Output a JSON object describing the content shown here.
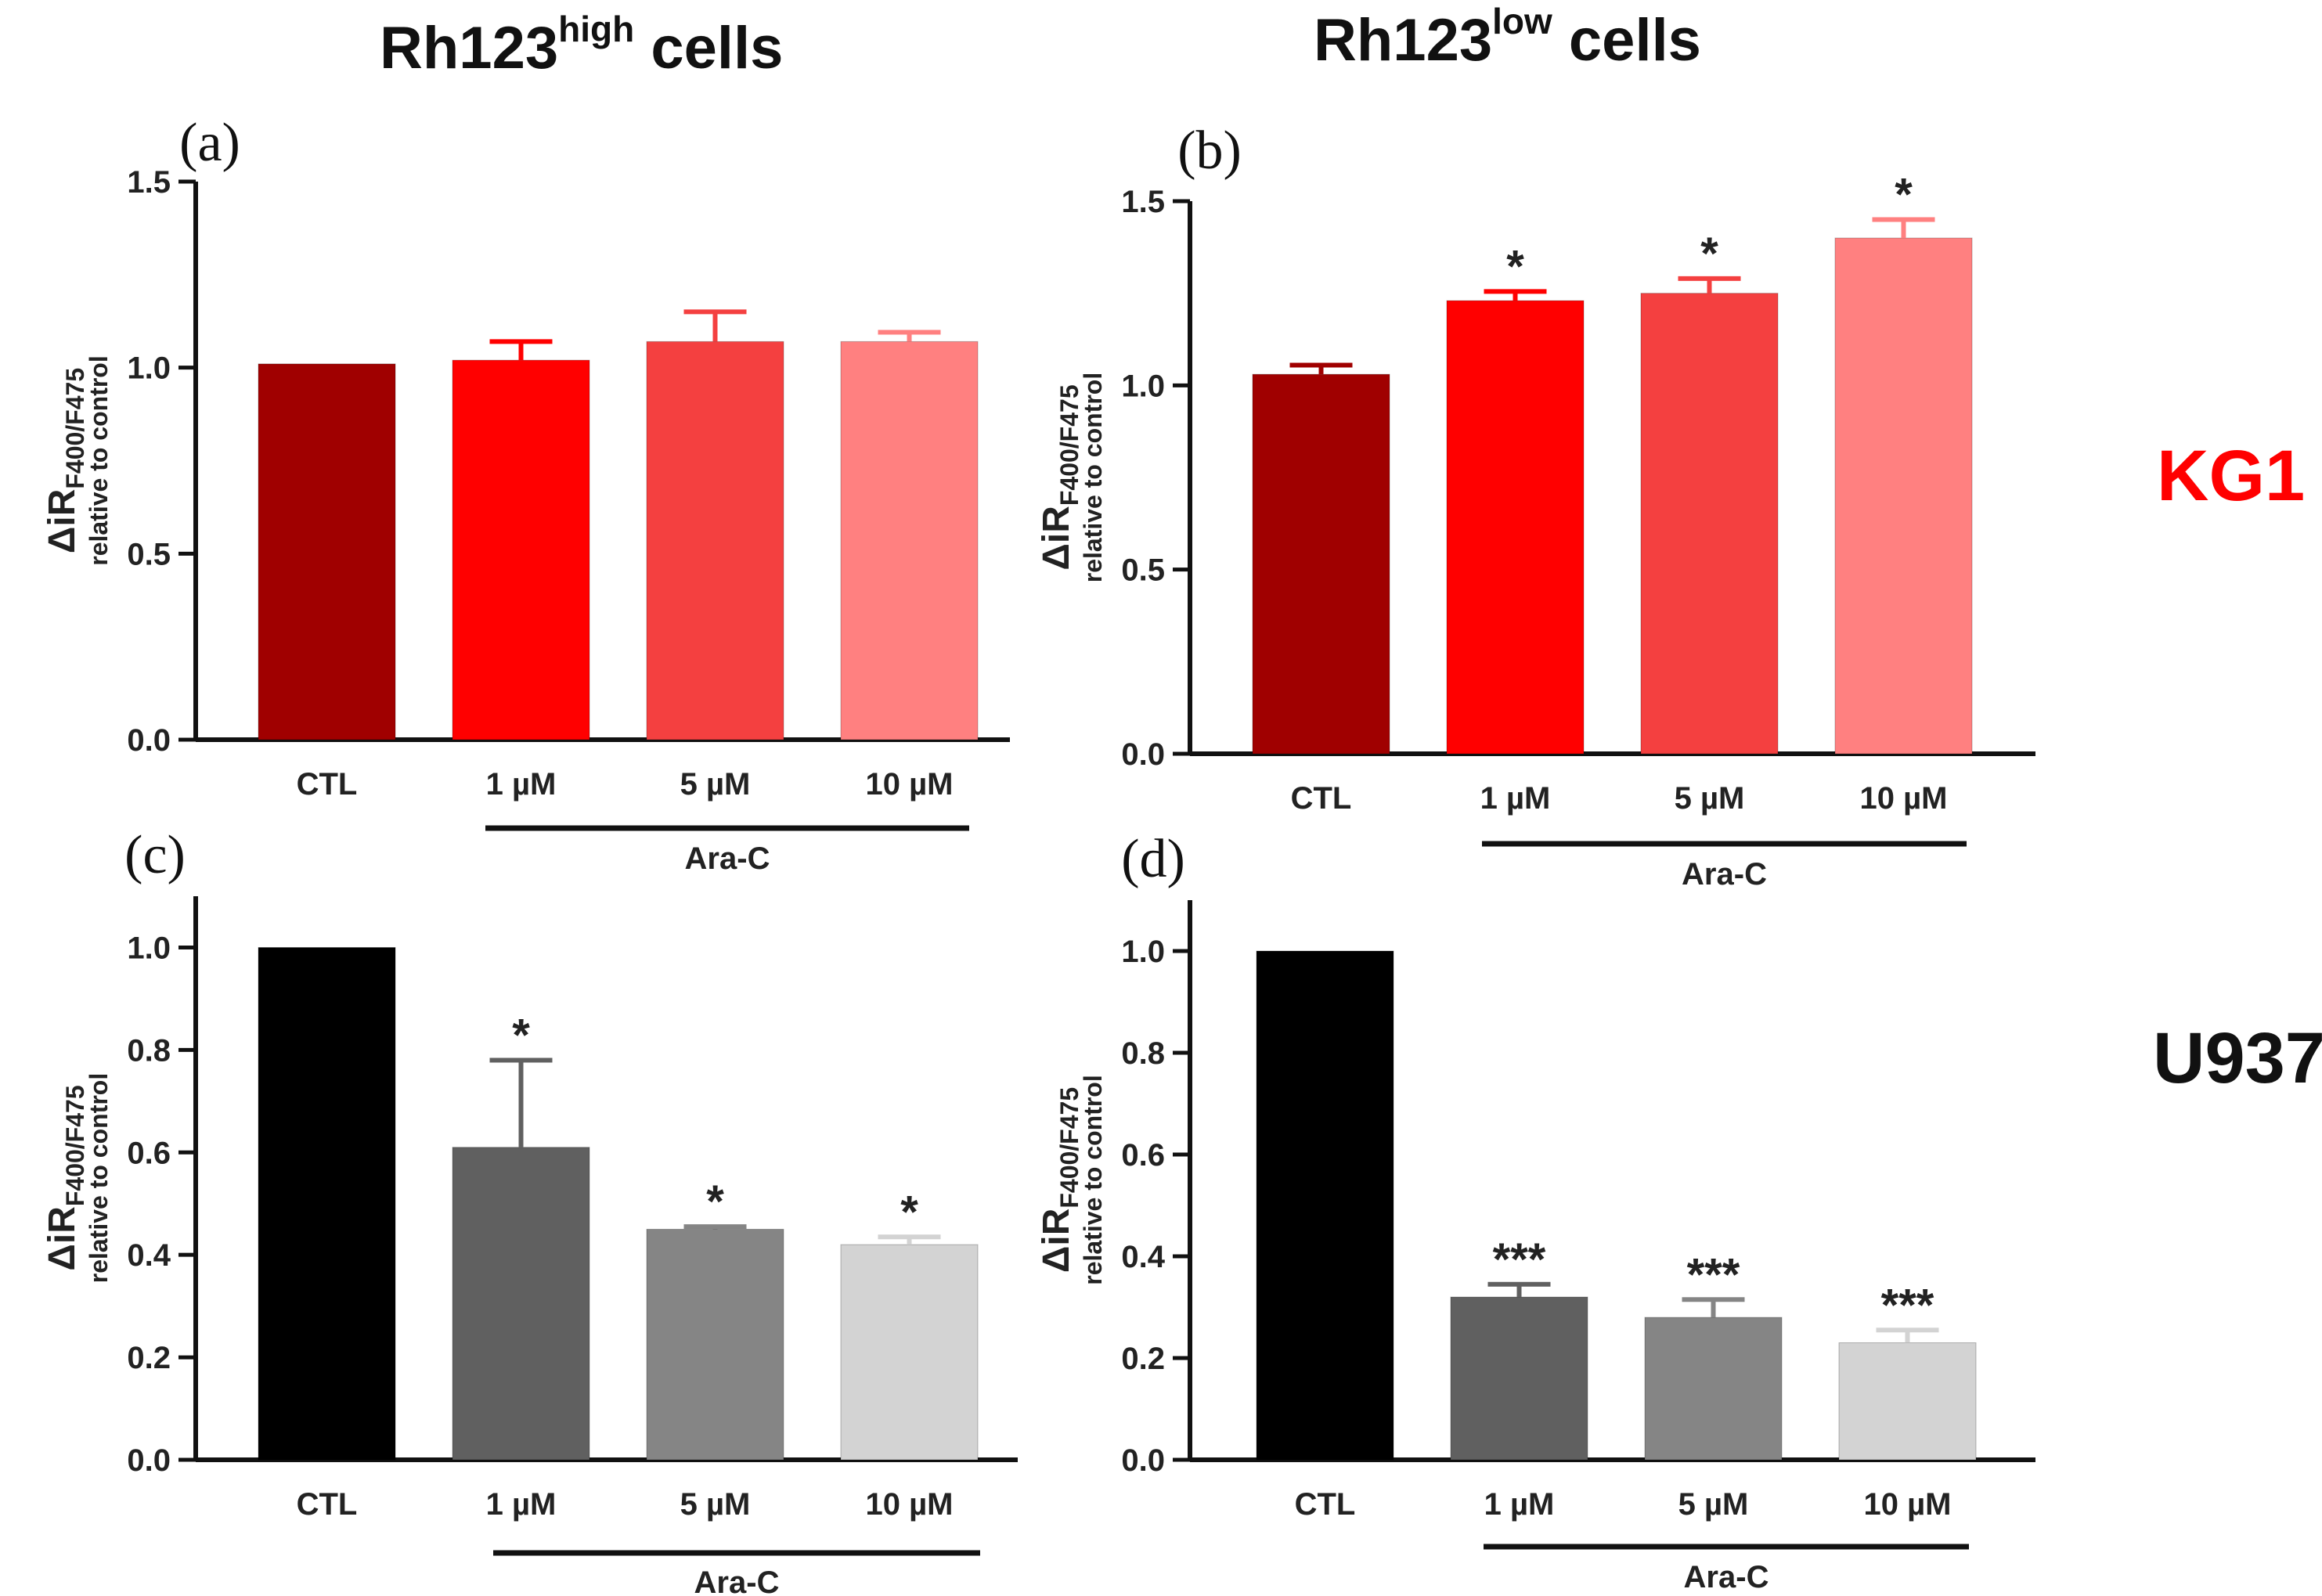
{
  "column_titles": [
    {
      "main": "Rh123",
      "sup": "high",
      "rest": " cells"
    },
    {
      "main": "Rh123",
      "sup": "low",
      "rest": " cells"
    }
  ],
  "row_labels": [
    {
      "text": "KG1",
      "color": "#ff0000"
    },
    {
      "text": "U937",
      "color": "#111111"
    }
  ],
  "chart_data": [
    {
      "panel": "(a)",
      "type": "bar",
      "categories": [
        "CTL",
        "1 µM",
        "5 µM",
        "10 µM"
      ],
      "values": [
        1.01,
        1.02,
        1.07,
        1.07
      ],
      "errors": [
        0.0,
        0.05,
        0.08,
        0.025
      ],
      "significance": [
        "",
        "",
        "",
        ""
      ],
      "colors": [
        "#a00000",
        "#ff0000",
        "#f44040",
        "#ff8080"
      ],
      "ylabel_main": "ΔiR",
      "ylabel_sub_script": "F400/F475",
      "ylabel_line2": "relative to control",
      "ylim": [
        0,
        1.5
      ],
      "yticks": [
        "0.0",
        "0.5",
        "1.0",
        "1.5"
      ],
      "group_label": "Ara-C"
    },
    {
      "panel": "(b)",
      "type": "bar",
      "categories": [
        "CTL",
        "1 µM",
        "5 µM",
        "10 µM"
      ],
      "values": [
        1.03,
        1.23,
        1.25,
        1.4
      ],
      "errors": [
        0.025,
        0.025,
        0.04,
        0.05
      ],
      "significance": [
        "",
        "*",
        "*",
        "*"
      ],
      "colors": [
        "#a00000",
        "#ff0000",
        "#f44040",
        "#ff8080"
      ],
      "ylabel_main": "ΔiR",
      "ylabel_sub_script": "F400/F475",
      "ylabel_line2": "relative to control",
      "ylim": [
        0,
        1.5
      ],
      "yticks": [
        "0.0",
        "0.5",
        "1.0",
        "1.5"
      ],
      "group_label": "Ara-C"
    },
    {
      "panel": "(c)",
      "type": "bar",
      "categories": [
        "CTL",
        "1 µM",
        "5 µM",
        "10 µM"
      ],
      "values": [
        1.0,
        0.61,
        0.45,
        0.42
      ],
      "errors": [
        0.0,
        0.17,
        0.005,
        0.015
      ],
      "significance": [
        "",
        "*",
        "*",
        "*"
      ],
      "colors": [
        "#000000",
        "#606060",
        "#858585",
        "#d3d3d3"
      ],
      "ylabel_main": "ΔiR",
      "ylabel_sub_script": "F400/F475",
      "ylabel_line2": "relative to control",
      "ylim": [
        0,
        1.1
      ],
      "yticks": [
        "0.0",
        "0.2",
        "0.4",
        "0.6",
        "0.8",
        "1.0"
      ],
      "group_label": "Ara-C"
    },
    {
      "panel": "(d)",
      "type": "bar",
      "categories": [
        "CTL",
        "1 µM",
        "5 µM",
        "10 µM"
      ],
      "values": [
        1.0,
        0.32,
        0.28,
        0.23
      ],
      "errors": [
        0.0,
        0.025,
        0.035,
        0.025
      ],
      "significance": [
        "",
        "***",
        "***",
        "***"
      ],
      "colors": [
        "#000000",
        "#606060",
        "#858585",
        "#d3d3d3"
      ],
      "ylabel_main": "ΔiR",
      "ylabel_sub_script": "F400/F475",
      "ylabel_line2": "relative to control",
      "ylim": [
        0,
        1.1
      ],
      "yticks": [
        "0.0",
        "0.2",
        "0.4",
        "0.6",
        "0.8",
        "1.0"
      ],
      "group_label": "Ara-C"
    }
  ]
}
